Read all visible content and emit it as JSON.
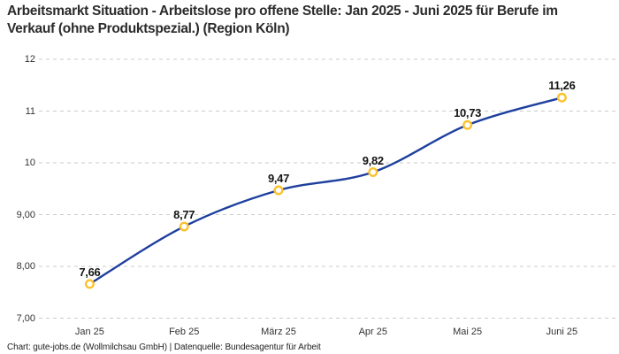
{
  "title": "Arbeitsmarkt Situation - Arbeitslose pro offene Stelle: Jan 2025 - Juni 2025 für Berufe im Verkauf (ohne Produktspezial.) (Region Köln)",
  "footer": "Chart: gute-jobs.de (Wollmilchsau GmbH) | Datenquelle: Bundesagentur für Arbeit",
  "colors": {
    "line": "#1e3f9e",
    "marker_ring": "#fbc22d",
    "marker_fill": "#ffffff",
    "grid": "#cbcbcb",
    "title_text": "#2b2b2b",
    "axis_text": "#333333",
    "point_label_text": "#141414",
    "footer_text": "#222222",
    "background": "#ffffff"
  },
  "chart_data": {
    "type": "line",
    "title": "Arbeitsmarkt Situation - Arbeitslose pro offene Stelle: Jan 2025 - Juni 2025 für Berufe im Verkauf (ohne Produktspezial.) (Region Köln)",
    "categories": [
      "Jan 25",
      "Feb 25",
      "März 25",
      "Apr 25",
      "Mai 25",
      "Juni 25"
    ],
    "values": [
      7.66,
      8.77,
      9.47,
      9.82,
      10.73,
      11.26
    ],
    "point_labels": [
      "7,66",
      "8,77",
      "9,47",
      "9,82",
      "10,73",
      "11,26"
    ],
    "yticks": [
      12,
      11,
      10,
      9,
      8,
      7
    ],
    "ytick_labels": [
      "12",
      "11",
      "10",
      "9,00",
      "8,00",
      "7,00"
    ],
    "ylim": [
      7,
      12
    ],
    "xlabel": "",
    "ylabel": "",
    "grid": "horizontal-dashed",
    "legend": "none",
    "line_style": "smooth",
    "marker_style": "open-circle"
  }
}
